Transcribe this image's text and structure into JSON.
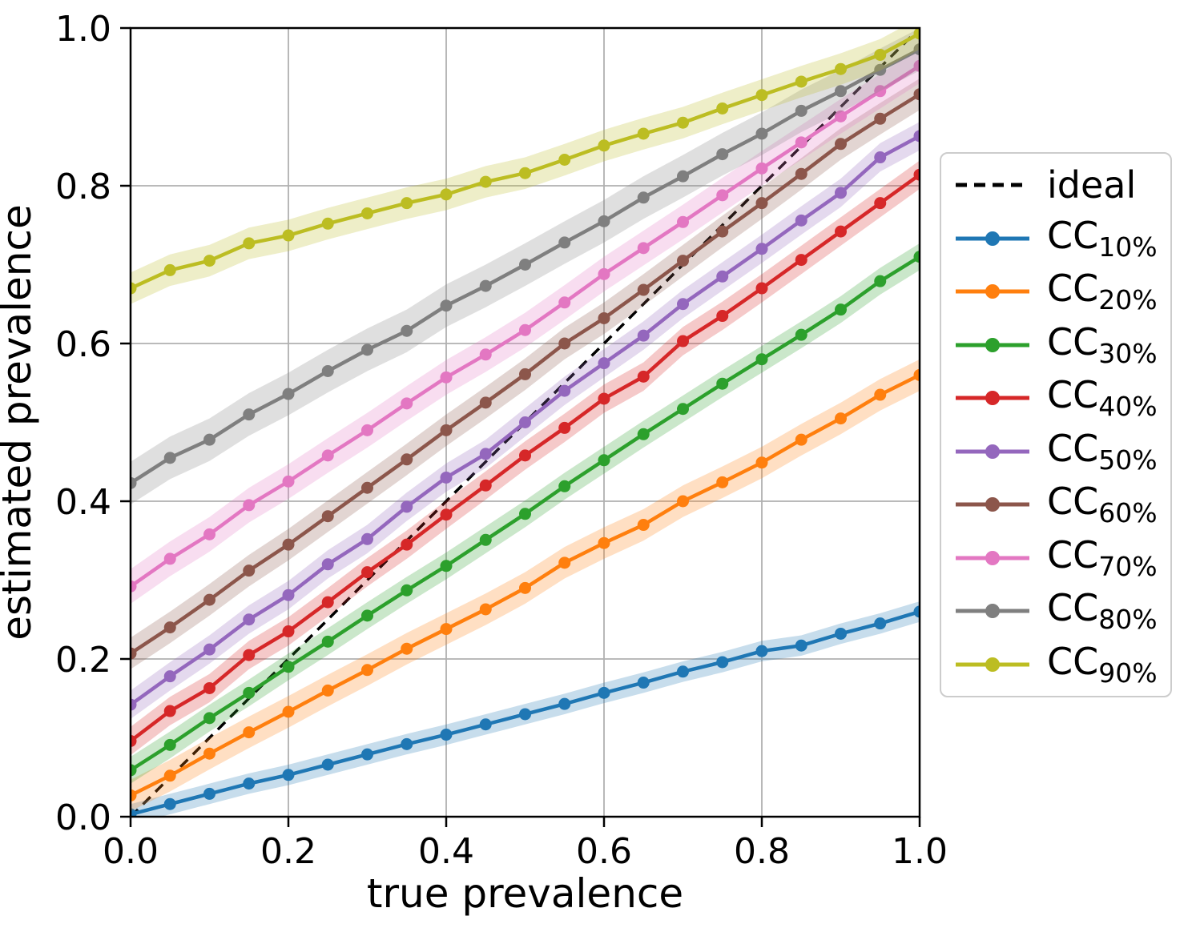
{
  "chart_data": {
    "type": "line",
    "title": "",
    "xlabel": "true prevalence",
    "ylabel": "estimated prevalence",
    "xlim": [
      0,
      1
    ],
    "ylim": [
      0,
      1
    ],
    "grid": true,
    "legend": {
      "position": "outside right, vertically centered",
      "entries": [
        "ideal",
        "CC_10%",
        "CC_20%",
        "CC_30%",
        "CC_40%",
        "CC_50%",
        "CC_60%",
        "CC_70%",
        "CC_80%",
        "CC_90%"
      ]
    },
    "ticks": {
      "x_values": [
        0.0,
        0.2,
        0.4,
        0.6,
        0.8,
        1.0
      ],
      "x_labels": [
        "0.0",
        "0.2",
        "0.4",
        "0.6",
        "0.8",
        "1.0"
      ],
      "y_values": [
        0.0,
        0.2,
        0.4,
        0.6,
        0.8,
        1.0
      ],
      "y_labels": [
        "0.0",
        "0.2",
        "0.4",
        "0.6",
        "0.8",
        "1.0"
      ]
    },
    "x": [
      0.0,
      0.05,
      0.1,
      0.15,
      0.2,
      0.25,
      0.3,
      0.35,
      0.4,
      0.45,
      0.5,
      0.55,
      0.6,
      0.65,
      0.7,
      0.75,
      0.8,
      0.85,
      0.9,
      0.95,
      1.0
    ],
    "ideal": {
      "label": "ideal",
      "x": [
        0,
        1
      ],
      "y": [
        0,
        1
      ],
      "color": "#000000",
      "linestyle": "dashed"
    },
    "series": [
      {
        "name": "CC_10%",
        "label_base": "CC",
        "label_sub": "10%",
        "color": "#1f77b4",
        "band_halfwidth": 0.013,
        "y": [
          0.003,
          0.016,
          0.029,
          0.042,
          0.053,
          0.066,
          0.079,
          0.092,
          0.104,
          0.117,
          0.13,
          0.143,
          0.157,
          0.17,
          0.184,
          0.196,
          0.21,
          0.217,
          0.232,
          0.245,
          0.26
        ]
      },
      {
        "name": "CC_20%",
        "label_base": "CC",
        "label_sub": "20%",
        "color": "#ff7f0e",
        "band_halfwidth": 0.02,
        "y": [
          0.027,
          0.052,
          0.08,
          0.107,
          0.133,
          0.16,
          0.186,
          0.213,
          0.238,
          0.263,
          0.29,
          0.322,
          0.347,
          0.37,
          0.4,
          0.424,
          0.449,
          0.478,
          0.505,
          0.535,
          0.56
        ]
      },
      {
        "name": "CC_30%",
        "label_base": "CC",
        "label_sub": "30%",
        "color": "#2ca02c",
        "band_halfwidth": 0.017,
        "y": [
          0.059,
          0.091,
          0.125,
          0.157,
          0.19,
          0.222,
          0.255,
          0.287,
          0.318,
          0.351,
          0.384,
          0.419,
          0.452,
          0.485,
          0.517,
          0.549,
          0.58,
          0.611,
          0.643,
          0.679,
          0.71
        ]
      },
      {
        "name": "CC_40%",
        "label_base": "CC",
        "label_sub": "40%",
        "color": "#d62728",
        "band_halfwidth": 0.018,
        "y": [
          0.096,
          0.134,
          0.163,
          0.205,
          0.235,
          0.272,
          0.31,
          0.345,
          0.383,
          0.42,
          0.458,
          0.493,
          0.53,
          0.558,
          0.603,
          0.635,
          0.67,
          0.706,
          0.742,
          0.778,
          0.814
        ]
      },
      {
        "name": "CC_50%",
        "label_base": "CC",
        "label_sub": "50%",
        "color": "#9467bd",
        "band_halfwidth": 0.018,
        "y": [
          0.142,
          0.178,
          0.212,
          0.25,
          0.281,
          0.32,
          0.352,
          0.393,
          0.43,
          0.46,
          0.5,
          0.54,
          0.575,
          0.61,
          0.65,
          0.685,
          0.72,
          0.756,
          0.791,
          0.836,
          0.863
        ]
      },
      {
        "name": "CC_60%",
        "label_base": "CC",
        "label_sub": "60%",
        "color": "#8c564b",
        "band_halfwidth": 0.02,
        "y": [
          0.207,
          0.24,
          0.275,
          0.312,
          0.345,
          0.381,
          0.417,
          0.453,
          0.49,
          0.525,
          0.561,
          0.6,
          0.632,
          0.668,
          0.705,
          0.742,
          0.778,
          0.815,
          0.853,
          0.885,
          0.916
        ]
      },
      {
        "name": "CC_70%",
        "label_base": "CC",
        "label_sub": "70%",
        "color": "#e377c2",
        "band_halfwidth": 0.022,
        "y": [
          0.292,
          0.327,
          0.358,
          0.395,
          0.425,
          0.458,
          0.49,
          0.524,
          0.557,
          0.586,
          0.617,
          0.652,
          0.688,
          0.721,
          0.754,
          0.788,
          0.822,
          0.855,
          0.888,
          0.92,
          0.952
        ]
      },
      {
        "name": "CC_80%",
        "label_base": "CC",
        "label_sub": "80%",
        "color": "#7f7f7f",
        "band_halfwidth": 0.027,
        "y": [
          0.423,
          0.455,
          0.478,
          0.51,
          0.536,
          0.565,
          0.592,
          0.616,
          0.648,
          0.673,
          0.7,
          0.728,
          0.755,
          0.785,
          0.812,
          0.84,
          0.866,
          0.895,
          0.92,
          0.947,
          0.973
        ]
      },
      {
        "name": "CC_90%",
        "label_base": "CC",
        "label_sub": "90%",
        "color": "#bcbd22",
        "band_halfwidth": 0.02,
        "y": [
          0.67,
          0.693,
          0.705,
          0.727,
          0.737,
          0.752,
          0.765,
          0.778,
          0.789,
          0.805,
          0.816,
          0.833,
          0.851,
          0.866,
          0.88,
          0.898,
          0.915,
          0.932,
          0.948,
          0.966,
          0.993
        ]
      }
    ]
  },
  "style": {
    "grid_color": "#b0b0b0",
    "spine_color": "#000000",
    "band_alpha": 0.25,
    "legend_border_color": "#cccccc",
    "marker": "circle"
  }
}
